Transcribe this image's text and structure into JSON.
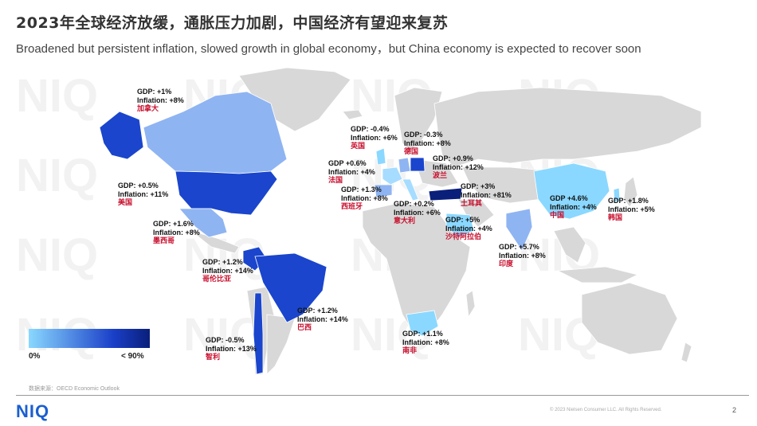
{
  "header": {
    "title": "2023年全球经济放缓，通胀压力加剧，中国经济有望迎来复苏",
    "subtitle": "Broadened but persistent inflation, slowed growth in global economy，but China economy is expected to recover soon"
  },
  "colors": {
    "land_default": "#d8d8d8",
    "scale_low": "#8ad8ff",
    "scale_mid": "#1a3fc8",
    "scale_high": "#0a1f7a",
    "label_cn": "#c8102e",
    "brand": "#1a5fd0"
  },
  "legend": {
    "min_label": "0%",
    "max_label": "< 90%"
  },
  "countries": [
    {
      "id": "canada",
      "gdp": "GDP: +1%",
      "inflation": "Inflation: +8%",
      "name": "加拿大"
    },
    {
      "id": "usa",
      "gdp": "GDP: +0.5%",
      "inflation": "Inflation: +11%",
      "name": "美国"
    },
    {
      "id": "mexico",
      "gdp": "GDP: +1.6%",
      "inflation": "Inflation: +8%",
      "name": "墨西哥"
    },
    {
      "id": "colombia",
      "gdp": "GDP: +1.2%",
      "inflation": "Inflation: +14%",
      "name": "哥伦比亚"
    },
    {
      "id": "brazil",
      "gdp": "GDP: +1.2%",
      "inflation": "Inflation: +14%",
      "name": "巴西"
    },
    {
      "id": "chile",
      "gdp": "GDP: -0.5%",
      "inflation": "Inflation: +13%",
      "name": "智利"
    },
    {
      "id": "uk",
      "gdp": "GDP: -0.4%",
      "inflation": "Inflation: +6%",
      "name": "英国"
    },
    {
      "id": "germany",
      "gdp": "GDP: -0.3%",
      "inflation": "Inflation: +8%",
      "name": "德国"
    },
    {
      "id": "poland",
      "gdp": "GDP: +0.9%",
      "inflation": "Inflation: +12%",
      "name": "波兰"
    },
    {
      "id": "france",
      "gdp": "GDP +0.6%",
      "inflation": "Inflation: +4%",
      "name": "法国"
    },
    {
      "id": "spain",
      "gdp": "GDP: +1.3%",
      "inflation": "Inflation: +8%",
      "name": "西班牙"
    },
    {
      "id": "turkey",
      "gdp": "GDP: +3%",
      "inflation": "Inflation: +81%",
      "name": "土耳其"
    },
    {
      "id": "italy",
      "gdp": "GDP: +0.2%",
      "inflation": "Inflation: +6%",
      "name": "意大利"
    },
    {
      "id": "saudi",
      "gdp": "GDP: +5%",
      "inflation": "Inflation: +4%",
      "name": "沙特阿拉伯"
    },
    {
      "id": "india",
      "gdp": "GDP: +5.7%",
      "inflation": "Inflation: +8%",
      "name": "印度"
    },
    {
      "id": "china",
      "gdp": "GDP +4.6%",
      "inflation": "Inflation: +4%",
      "name": "中国"
    },
    {
      "id": "korea",
      "gdp": "GDP: +1.8%",
      "inflation": "Inflation: +5%",
      "name": "韩国"
    },
    {
      "id": "south_africa",
      "gdp": "GDP: +1.1%",
      "inflation": "Inflation: +8%",
      "name": "南非"
    }
  ],
  "footer": {
    "source": "数据来源：OECD Economic Outlook",
    "logo": "NIQ",
    "copyright": "© 2023 Nielsen Consumer LLC. All Rights Reserved.",
    "page": "2"
  }
}
